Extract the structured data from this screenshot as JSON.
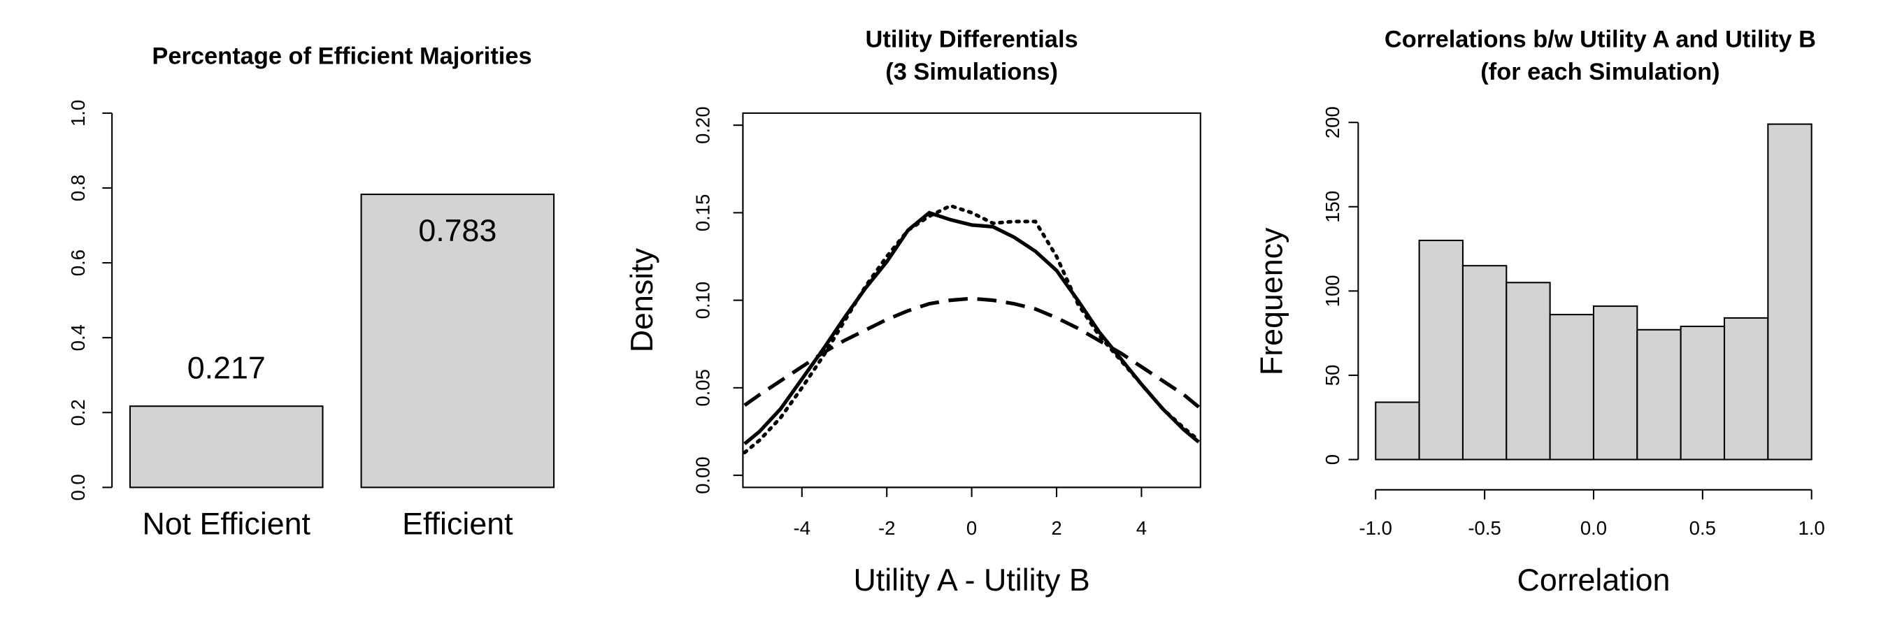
{
  "chart_data": [
    {
      "type": "bar",
      "title": "Percentage of Efficient Majorities",
      "categories": [
        "Not Efficient",
        "Efficient"
      ],
      "values": [
        0.217,
        0.783
      ],
      "color": "#d3d3d3",
      "ylim": [
        0,
        1
      ],
      "yticks": [
        {
          "value": 0,
          "label": "0.0"
        },
        0.2,
        0.4,
        0.6,
        0.8,
        {
          "value": 1,
          "label": "1.0"
        }
      ]
    },
    {
      "type": "line",
      "title": [
        "Utility Differentials",
        "(3 Simulations)"
      ],
      "xlabel": "Utility A - Utility B",
      "ylabel": "Density",
      "x": [
        -5.35,
        -5,
        -4.5,
        -4,
        -3.5,
        -3,
        -2.5,
        -2,
        -1.5,
        -1,
        -0.5,
        0,
        0.5,
        1,
        1.5,
        2,
        2.5,
        3,
        3.5,
        4,
        4.5,
        5,
        5.35
      ],
      "series": [
        {
          "color": "#000000",
          "dash": "solid",
          "values": [
            0.018,
            0.025,
            0.038,
            0.055,
            0.072,
            0.09,
            0.107,
            0.122,
            0.14,
            0.15,
            0.146,
            0.143,
            0.142,
            0.136,
            0.128,
            0.117,
            0.1,
            0.082,
            0.067,
            0.052,
            0.038,
            0.026,
            0.019
          ]
        },
        {
          "color": "#000000",
          "dash": "dotted",
          "values": [
            0.013,
            0.02,
            0.033,
            0.05,
            0.068,
            0.088,
            0.108,
            0.125,
            0.14,
            0.148,
            0.154,
            0.15,
            0.144,
            0.145,
            0.145,
            0.125,
            0.098,
            0.08,
            0.066,
            0.052,
            0.038,
            0.027,
            0.02
          ]
        },
        {
          "color": "#000000",
          "dash": "dashed",
          "values": [
            0.04,
            0.046,
            0.054,
            0.062,
            0.07,
            0.077,
            0.083,
            0.089,
            0.094,
            0.098,
            0.1,
            0.101,
            0.1,
            0.098,
            0.095,
            0.09,
            0.084,
            0.077,
            0.07,
            0.062,
            0.054,
            0.046,
            0.039
          ]
        }
      ],
      "xlim": [
        -5.39,
        5.39
      ],
      "xticks": [
        -4,
        -2,
        0,
        2,
        4
      ],
      "ylim": [
        -0.0069,
        0.2069
      ],
      "yticks": [
        {
          "value": 0,
          "label": "0.00"
        },
        0.05,
        {
          "value": 0.1,
          "label": "0.10"
        },
        0.15,
        {
          "value": 0.2,
          "label": "0.20"
        }
      ]
    },
    {
      "type": "histogram",
      "title": [
        "Correlations b/w Utility A and Utility B",
        "(for each Simulation)"
      ],
      "xlabel": "Correlation",
      "ylabel": "Frequency",
      "color": "#d3d3d3",
      "bins": [
        -1.0,
        -0.8,
        -0.6,
        -0.4,
        -0.2,
        0.0,
        0.2,
        0.4,
        0.6,
        0.8,
        1.0
      ],
      "values": [
        34,
        130,
        115,
        105,
        86,
        91,
        77,
        79,
        84,
        199
      ],
      "xlim": [
        -1.08,
        1.08
      ],
      "xticks": [
        {
          "value": -1,
          "label": "-1.0"
        },
        -0.5,
        {
          "value": 0,
          "label": "0.0"
        },
        0.5,
        {
          "value": 1,
          "label": "1.0"
        }
      ],
      "ylim": [
        -7.96,
        206.96
      ],
      "yticks": [
        0,
        50,
        100,
        150,
        200
      ]
    }
  ]
}
